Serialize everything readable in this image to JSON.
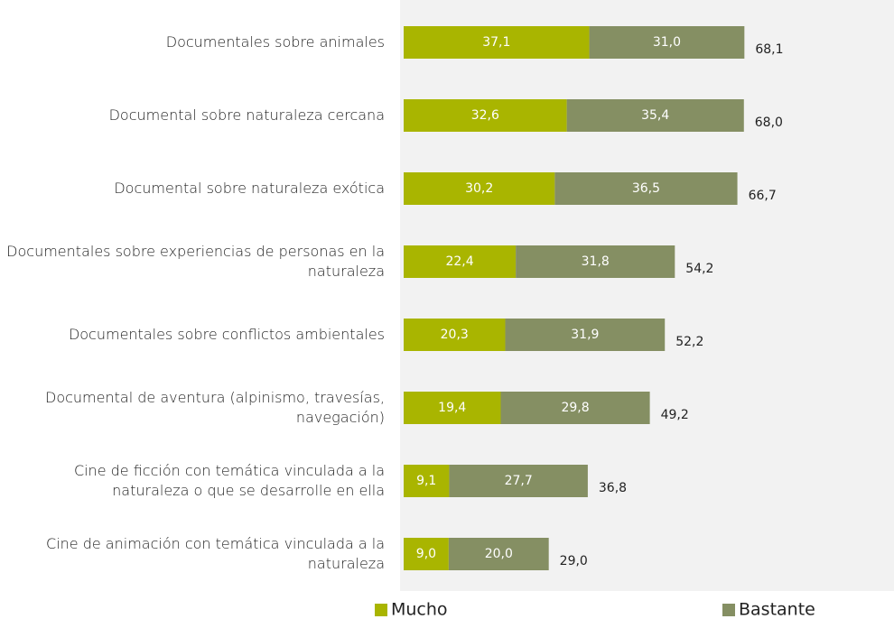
{
  "chart_data": {
    "type": "stacked_barh",
    "categories": [
      "Documentales sobre animales",
      "Documental sobre naturaleza cercana",
      "Documental sobre naturaleza exótica",
      "Documentales sobre experiencias de personas en la naturaleza",
      "Documentales sobre conflictos ambientales",
      "Documental de aventura (alpinismo, travesías, navegación)",
      "Cine de ficción con temática vinculada a la naturaleza o que se desarrolle en ella",
      "Cine de animación con temática vinculada a la naturaleza"
    ],
    "series": [
      {
        "name": "Mucho",
        "color": "#a9b500",
        "values": [
          37.1,
          32.6,
          30.2,
          22.4,
          20.3,
          19.4,
          9.1,
          9.0
        ],
        "value_labels": [
          "37,1",
          "32,6",
          "30,2",
          "22,4",
          "20,3",
          "19,4",
          "9,1",
          "9,0"
        ]
      },
      {
        "name": "Bastante",
        "color": "#858f63",
        "values": [
          31.0,
          35.4,
          36.5,
          31.8,
          31.9,
          29.8,
          27.7,
          20.0
        ],
        "value_labels": [
          "31,0",
          "35,4",
          "36,5",
          "31,8",
          "31,9",
          "29,8",
          "27,7",
          "20,0"
        ]
      }
    ],
    "totals": [
      68.1,
      68.0,
      66.7,
      54.2,
      52.2,
      49.2,
      36.8,
      29.0
    ],
    "total_labels": [
      "68,1",
      "68,0",
      "66,7",
      "54,2",
      "52,2",
      "49,2",
      "36,8",
      "29,0"
    ],
    "xlim": [
      0,
      98
    ],
    "legend": "bottom"
  }
}
